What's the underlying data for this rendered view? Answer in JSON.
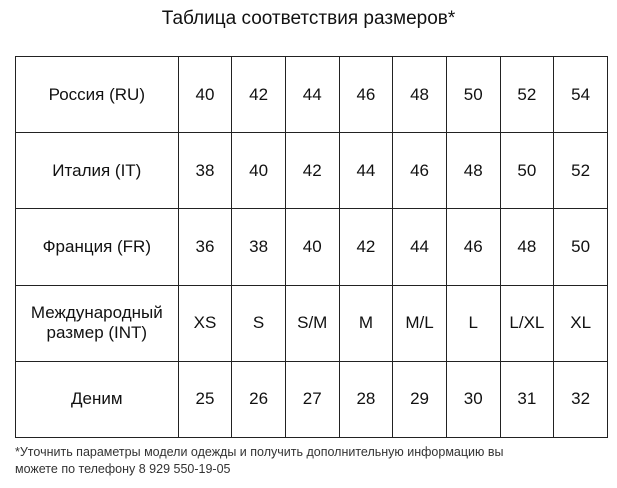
{
  "title": "Таблица соответствия размеров*",
  "rows": [
    {
      "label": "Россия (RU)",
      "values": [
        "40",
        "42",
        "44",
        "46",
        "48",
        "50",
        "52",
        "54"
      ]
    },
    {
      "label": "Италия (IT)",
      "values": [
        "38",
        "40",
        "42",
        "44",
        "46",
        "48",
        "50",
        "52"
      ]
    },
    {
      "label": "Франция (FR)",
      "values": [
        "36",
        "38",
        "40",
        "42",
        "44",
        "46",
        "48",
        "50"
      ]
    },
    {
      "label": "Международный размер  (INT)",
      "values": [
        "XS",
        "S",
        "S/M",
        "M",
        "M/L",
        "L",
        "L/XL",
        "XL"
      ]
    },
    {
      "label": "Деним",
      "values": [
        "25",
        "26",
        "27",
        "28",
        "29",
        "30",
        "31",
        "32"
      ]
    }
  ],
  "footnote_line1": "*Уточнить параметры модели одежды и получить дополнительную информацию вы",
  "footnote_line2": "можете по телефону  8 929 550-19-05"
}
